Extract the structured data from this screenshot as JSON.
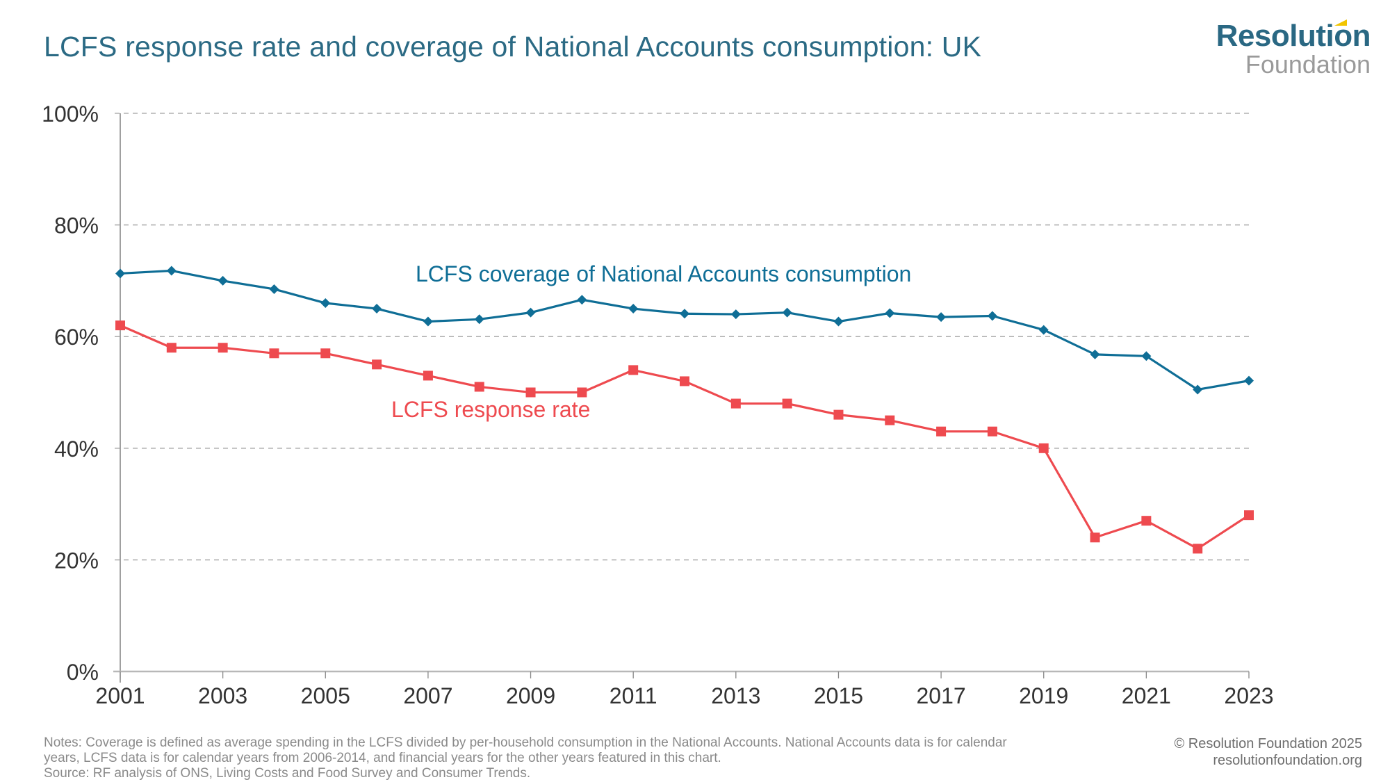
{
  "header": {
    "title": "LCFS response rate and coverage of National Accounts consumption: UK"
  },
  "logo": {
    "line1": "Resolution",
    "line2": "Foundation",
    "accent_color": "#f2c500"
  },
  "footer": {
    "notes_line1": "Notes:  Coverage is defined as average spending in the LCFS divided by per-household consumption in the National Accounts. National Accounts data is for calendar",
    "notes_line2": "years, LCFS data is for calendar years from 2006-2014, and financial years for the other years featured in this chart.",
    "source": "Source: RF analysis of ONS, Living Costs and Food Survey and Consumer Trends.",
    "copyright": "© Resolution Foundation 2025",
    "website": "resolutionfoundation.org"
  },
  "chart_data": {
    "type": "line",
    "title": "LCFS response rate and coverage of National Accounts consumption: UK",
    "xlabel": "",
    "ylabel": "",
    "x": [
      2001,
      2002,
      2003,
      2004,
      2005,
      2006,
      2007,
      2008,
      2009,
      2010,
      2011,
      2012,
      2013,
      2014,
      2015,
      2016,
      2017,
      2018,
      2019,
      2020,
      2021,
      2022,
      2023
    ],
    "x_ticks": [
      "2001",
      "2003",
      "2005",
      "2007",
      "2009",
      "2011",
      "2013",
      "2015",
      "2017",
      "2019",
      "2021",
      "2023"
    ],
    "y_ticks": [
      "0%",
      "20%",
      "40%",
      "60%",
      "80%",
      "100%"
    ],
    "ylim": [
      0,
      100
    ],
    "xlim": [
      2001,
      2023
    ],
    "grid": "horizontal dashed",
    "series": [
      {
        "name": "LCFS coverage of National Accounts consumption",
        "color": "#0f6e96",
        "marker": "diamond",
        "label_position": "above line, centre",
        "values": [
          71.3,
          71.8,
          70.0,
          68.5,
          66.0,
          65.0,
          62.7,
          63.1,
          64.3,
          66.6,
          65.0,
          64.1,
          64.0,
          64.3,
          62.7,
          64.2,
          63.5,
          63.7,
          61.2,
          56.8,
          56.5,
          50.5,
          52.1
        ]
      },
      {
        "name": "LCFS response rate",
        "color": "#ee4a4f",
        "marker": "square",
        "label_position": "below line, left-centre",
        "values": [
          62,
          58,
          58,
          57,
          57,
          55,
          53,
          51,
          50,
          50,
          54,
          52,
          48,
          48,
          46,
          45,
          43,
          43,
          40,
          24,
          27,
          22,
          28
        ]
      }
    ]
  }
}
